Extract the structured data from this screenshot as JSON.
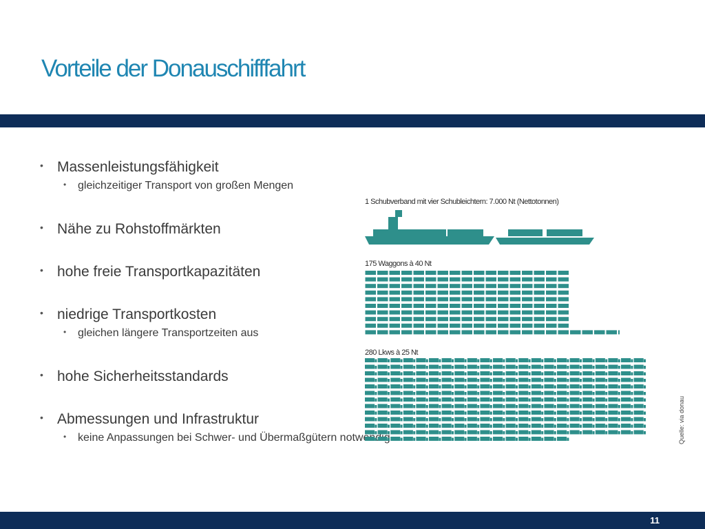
{
  "slide": {
    "title": "Vorteile der Donauschifffahrt",
    "page_number": "11",
    "source": "Quelle: via donau"
  },
  "bullets": [
    {
      "text": "Massenleistungsfähigkeit",
      "sub": "gleichzeitiger Transport von großen Mengen"
    },
    {
      "text": "Nähe zu Rohstoffmärkten",
      "sub": ""
    },
    {
      "text": "hohe freie Transportkapazitäten",
      "sub": ""
    },
    {
      "text": "niedrige Transportkosten",
      "sub": "gleichen längere Transportzeiten aus"
    },
    {
      "text": "hohe Sicherheitsstandards",
      "sub": ""
    },
    {
      "text": "Abmessungen und Infrastruktur",
      "sub": "keine Anpassungen bei Schwer- und Übermaßgütern notwendig"
    }
  ],
  "illustration": {
    "ship_caption": "1 Schubverband mit vier Schubleichtern: 7.000 Nt (Nettotonnen)",
    "wagon_caption": "175 Waggons à 40 Nt",
    "truck_caption": "280 Lkws à 25 Nt",
    "wagon_count": 175,
    "truck_count": 280,
    "color": "#2e8f8b",
    "ship_icon": "push-convoy-icon",
    "wagon_icon": "rail-wagon-icon",
    "truck_icon": "truck-icon"
  },
  "colors": {
    "title": "#1f86b2",
    "band": "#0e2d58",
    "icon": "#2e8f8b"
  }
}
